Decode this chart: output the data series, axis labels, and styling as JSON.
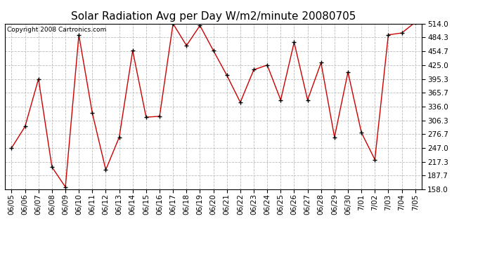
{
  "title": "Solar Radiation Avg per Day W/m2/minute 20080705",
  "copyright_text": "Copyright 2008 Cartronics.com",
  "dates": [
    "06/05",
    "06/06",
    "06/07",
    "06/08",
    "06/09",
    "06/10",
    "06/11",
    "06/12",
    "06/13",
    "06/14",
    "06/15",
    "06/16",
    "06/17",
    "06/18",
    "06/19",
    "06/20",
    "06/21",
    "06/22",
    "06/23",
    "06/24",
    "06/25",
    "06/26",
    "06/27",
    "06/28",
    "06/29",
    "06/30",
    "7/01",
    "7/02",
    "7/03",
    "7/04",
    "7/05"
  ],
  "values": [
    247.0,
    293.0,
    395.3,
    206.0,
    163.0,
    490.0,
    322.0,
    200.0,
    270.0,
    456.0,
    313.0,
    315.0,
    514.0,
    467.0,
    510.0,
    456.0,
    403.0,
    345.0,
    415.0,
    425.0,
    350.0,
    474.0,
    350.0,
    430.0,
    270.0,
    410.0,
    280.0,
    222.0,
    490.0,
    494.0,
    517.0
  ],
  "ylim": [
    158.0,
    514.0
  ],
  "yticks": [
    158.0,
    187.7,
    217.3,
    247.0,
    276.7,
    306.3,
    336.0,
    365.7,
    395.3,
    425.0,
    454.7,
    484.3,
    514.0
  ],
  "line_color": "#cc0000",
  "background_color": "#ffffff",
  "grid_color": "#bbbbbb",
  "title_fontsize": 11,
  "tick_fontsize": 7.5
}
